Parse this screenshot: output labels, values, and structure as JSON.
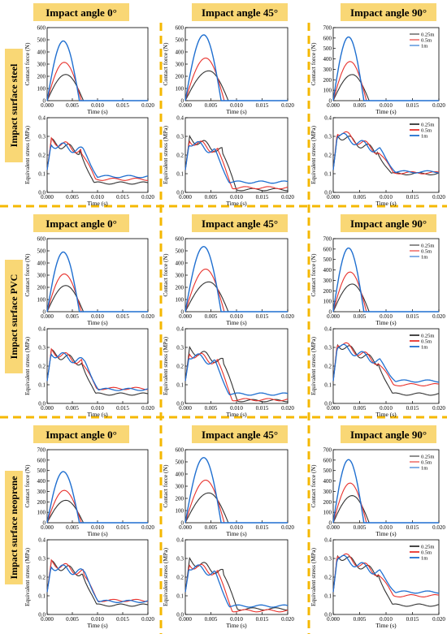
{
  "colors": {
    "dashed": "#F5B800",
    "label_bg": "#F9D775",
    "series": [
      "#333333",
      "#E8312C",
      "#1F6FD0"
    ]
  },
  "x_axis": {
    "label": "Time (s)",
    "ticks": [
      "0.000",
      "0.005",
      "0.010",
      "0.015",
      "0.020"
    ],
    "range": [
      0,
      0.02
    ]
  },
  "legend": [
    "0.25m",
    "0.5m",
    "1m"
  ],
  "rows": [
    {
      "surface": "Impact surface steel",
      "columns": [
        {
          "header": "Impact angle 0°",
          "force": {
            "ylabel": "Contact force (N)",
            "ticks": [
              "0",
              "100",
              "200",
              "300",
              "400",
              "500",
              "600"
            ],
            "range": [
              0,
              600
            ],
            "peaks": [
              215,
              315,
              490
            ],
            "peak_time": [
              0.0037,
              0.0034,
              0.0032
            ],
            "end_time": [
              0.0072,
              0.0068,
              0.0064
            ]
          },
          "stress": {
            "ylabel": "Equivalent stress (MPa)",
            "ticks": [
              "0.0",
              "0.1",
              "0.2",
              "0.3",
              "0.4"
            ],
            "range": [
              0,
              0.4
            ],
            "peak": [
              0.27,
              0.28,
              0.26
            ],
            "drop": [
              0.0065,
              0.0068,
              0.0072
            ],
            "tail": [
              0.05,
              0.07,
              0.085
            ]
          }
        },
        {
          "header": "Impact angle 45°",
          "force": {
            "ylabel": "Contact force (N)",
            "ticks": [
              "0",
              "100",
              "200",
              "300",
              "400",
              "500",
              "600"
            ],
            "range": [
              0,
              600
            ],
            "peaks": [
              245,
              350,
              540
            ],
            "peak_time": [
              0.0046,
              0.004,
              0.0036
            ],
            "end_time": [
              0.0084,
              0.0076,
              0.007
            ]
          },
          "stress": {
            "ylabel": "Equivalent stress (MPa)",
            "ticks": [
              "0.0",
              "0.1",
              "0.2",
              "0.3",
              "0.4"
            ],
            "range": [
              0,
              0.4
            ],
            "peak": [
              0.29,
              0.28,
              0.27
            ],
            "drop": [
              0.0072,
              0.0064,
              0.0058
            ],
            "tail": [
              0.015,
              0.025,
              0.055
            ]
          }
        },
        {
          "header": "Impact angle 90°",
          "force": {
            "ylabel": "Contact force (N)",
            "ticks": [
              "0",
              "100",
              "200",
              "300",
              "400",
              "500",
              "600",
              "700"
            ],
            "range": [
              0,
              700
            ],
            "peaks": [
              250,
              375,
              610
            ],
            "peak_time": [
              0.0036,
              0.0032,
              0.0029
            ],
            "end_time": [
              0.0068,
              0.0063,
              0.0058
            ]
          },
          "stress": {
            "ylabel": "Equivalent stress (MPa)",
            "ticks": [
              "0.0",
              "0.1",
              "0.2",
              "0.3",
              "0.4"
            ],
            "range": [
              0,
              0.4
            ],
            "peak": [
              0.31,
              0.33,
              0.31
            ],
            "drop": [
              0.0082,
              0.0086,
              0.009
            ],
            "tail": [
              0.1,
              0.105,
              0.11
            ]
          }
        }
      ]
    },
    {
      "surface": "Impact surface PVC",
      "columns": [
        {
          "header": "Impact angle 0°",
          "force": {
            "ylabel": "Contact force (N)",
            "ticks": [
              "0",
              "100",
              "200",
              "300",
              "400",
              "500",
              "600"
            ],
            "range": [
              0,
              600
            ],
            "peaks": [
              215,
              310,
              490
            ],
            "peak_time": [
              0.0037,
              0.0034,
              0.0032
            ],
            "end_time": [
              0.0072,
              0.0068,
              0.0064
            ]
          },
          "stress": {
            "ylabel": "Equivalent stress (MPa)",
            "ticks": [
              "0.0",
              "0.1",
              "0.2",
              "0.3",
              "0.4"
            ],
            "range": [
              0,
              0.4
            ],
            "peak": [
              0.27,
              0.28,
              0.27
            ],
            "drop": [
              0.0068,
              0.007,
              0.0074
            ],
            "tail": [
              0.05,
              0.08,
              0.075
            ]
          }
        },
        {
          "header": "Impact angle 45°",
          "force": {
            "ylabel": "Contact force (N)",
            "ticks": [
              "0",
              "100",
              "200",
              "300",
              "400",
              "500",
              "600"
            ],
            "range": [
              0,
              600
            ],
            "peaks": [
              245,
              350,
              535
            ],
            "peak_time": [
              0.0046,
              0.004,
              0.0036
            ],
            "end_time": [
              0.0084,
              0.0076,
              0.007
            ]
          },
          "stress": {
            "ylabel": "Equivalent stress (MPa)",
            "ticks": [
              "0.0",
              "0.1",
              "0.2",
              "0.3",
              "0.4"
            ],
            "range": [
              0,
              0.4
            ],
            "peak": [
              0.29,
              0.27,
              0.26
            ],
            "drop": [
              0.0074,
              0.0064,
              0.0058
            ],
            "tail": [
              0.015,
              0.02,
              0.05
            ]
          }
        },
        {
          "header": "Impact angle 90°",
          "force": {
            "ylabel": "Contact force (N)",
            "ticks": [
              "0",
              "100",
              "200",
              "300",
              "400",
              "500",
              "600",
              "700"
            ],
            "range": [
              0,
              700
            ],
            "peaks": [
              265,
              380,
              610
            ],
            "peak_time": [
              0.0036,
              0.0032,
              0.0029
            ],
            "end_time": [
              0.0068,
              0.0063,
              0.0058
            ]
          },
          "stress": {
            "ylabel": "Equivalent stress (MPa)",
            "ticks": [
              "0.0",
              "0.1",
              "0.2",
              "0.3",
              "0.4"
            ],
            "range": [
              0,
              0.4
            ],
            "peak": [
              0.32,
              0.33,
              0.31
            ],
            "drop": [
              0.0084,
              0.0086,
              0.009
            ],
            "tail": [
              0.05,
              0.1,
              0.12
            ]
          }
        }
      ]
    },
    {
      "surface": "Impact surface neoprene",
      "columns": [
        {
          "header": "Impact angle 0°",
          "force": {
            "ylabel": "Contact force (N)",
            "ticks": [
              "0",
              "100",
              "200",
              "300",
              "400",
              "500",
              "600",
              "700"
            ],
            "range": [
              0,
              700
            ],
            "peaks": [
              215,
              310,
              490
            ],
            "peak_time": [
              0.0037,
              0.0034,
              0.0032
            ],
            "end_time": [
              0.0072,
              0.0068,
              0.0064
            ]
          },
          "stress": {
            "ylabel": "Equivalent stress (MPa)",
            "ticks": [
              "0.0",
              "0.1",
              "0.2",
              "0.3",
              "0.4"
            ],
            "range": [
              0,
              0.4
            ],
            "peak": [
              0.27,
              0.28,
              0.26
            ],
            "drop": [
              0.007,
              0.0072,
              0.0074
            ],
            "tail": [
              0.05,
              0.075,
              0.07
            ]
          }
        },
        {
          "header": "Impact angle 45°",
          "force": {
            "ylabel": "Contact force (N)",
            "ticks": [
              "0",
              "100",
              "200",
              "300",
              "400",
              "500",
              "600"
            ],
            "range": [
              0,
              600
            ],
            "peaks": [
              245,
              350,
              535
            ],
            "peak_time": [
              0.0046,
              0.004,
              0.0036
            ],
            "end_time": [
              0.0084,
              0.0076,
              0.007
            ]
          },
          "stress": {
            "ylabel": "Equivalent stress (MPa)",
            "ticks": [
              "0.0",
              "0.1",
              "0.2",
              "0.3",
              "0.4"
            ],
            "range": [
              0,
              0.4
            ],
            "peak": [
              0.29,
              0.27,
              0.26
            ],
            "drop": [
              0.0074,
              0.0064,
              0.0058
            ],
            "tail": [
              0.03,
              0.02,
              0.045
            ]
          }
        },
        {
          "header": "Impact angle 90°",
          "force": {
            "ylabel": "Contact force (N)",
            "ticks": [
              "0",
              "100",
              "200",
              "300",
              "400",
              "500",
              "600",
              "700"
            ],
            "range": [
              0,
              700
            ],
            "peaks": [
              260,
              380,
              605
            ],
            "peak_time": [
              0.0036,
              0.0032,
              0.0029
            ],
            "end_time": [
              0.0068,
              0.0063,
              0.0058
            ]
          },
          "stress": {
            "ylabel": "Equivalent stress (MPa)",
            "ticks": [
              "0.0",
              "0.1",
              "0.2",
              "0.3",
              "0.4"
            ],
            "range": [
              0,
              0.4
            ],
            "peak": [
              0.32,
              0.33,
              0.31
            ],
            "drop": [
              0.0084,
              0.0086,
              0.009
            ],
            "tail": [
              0.05,
              0.1,
              0.12
            ]
          }
        }
      ]
    }
  ],
  "chart_data": [
    {
      "type": "line",
      "panel": "steel 0° contact force",
      "ylabel": "Contact force (N)",
      "xlabel": "Time (s)",
      "xlim": [
        0,
        0.02
      ],
      "ylim": [
        0,
        600
      ],
      "series": [
        {
          "name": "0.25m",
          "peak": 215
        },
        {
          "name": "0.5m",
          "peak": 315
        },
        {
          "name": "1m",
          "peak": 490
        }
      ]
    },
    {
      "type": "line",
      "panel": "steel 45° contact force",
      "ylabel": "Contact force (N)",
      "xlabel": "Time (s)",
      "xlim": [
        0,
        0.02
      ],
      "ylim": [
        0,
        600
      ],
      "series": [
        {
          "name": "0.25m",
          "peak": 245
        },
        {
          "name": "0.5m",
          "peak": 350
        },
        {
          "name": "1m",
          "peak": 540
        }
      ]
    },
    {
      "type": "line",
      "panel": "steel 90° contact force",
      "ylabel": "Contact force (N)",
      "xlabel": "Time (s)",
      "xlim": [
        0,
        0.02
      ],
      "ylim": [
        0,
        700
      ],
      "series": [
        {
          "name": "0.25m",
          "peak": 250
        },
        {
          "name": "0.5m",
          "peak": 375
        },
        {
          "name": "1m",
          "peak": 610
        }
      ]
    },
    {
      "type": "line",
      "panel": "PVC 0° contact force",
      "ylabel": "Contact force (N)",
      "xlabel": "Time (s)",
      "xlim": [
        0,
        0.02
      ],
      "ylim": [
        0,
        600
      ],
      "series": [
        {
          "name": "0.25m",
          "peak": 215
        },
        {
          "name": "0.5m",
          "peak": 310
        },
        {
          "name": "1m",
          "peak": 490
        }
      ]
    },
    {
      "type": "line",
      "panel": "PVC 45° contact force",
      "ylabel": "Contact force (N)",
      "xlabel": "Time (s)",
      "xlim": [
        0,
        0.02
      ],
      "ylim": [
        0,
        600
      ],
      "series": [
        {
          "name": "0.25m",
          "peak": 245
        },
        {
          "name": "0.5m",
          "peak": 350
        },
        {
          "name": "1m",
          "peak": 535
        }
      ]
    },
    {
      "type": "line",
      "panel": "PVC 90° contact force",
      "ylabel": "Contact force (N)",
      "xlabel": "Time (s)",
      "xlim": [
        0,
        0.02
      ],
      "ylim": [
        0,
        700
      ],
      "series": [
        {
          "name": "0.25m",
          "peak": 265
        },
        {
          "name": "0.5m",
          "peak": 380
        },
        {
          "name": "1m",
          "peak": 610
        }
      ]
    },
    {
      "type": "line",
      "panel": "neoprene 0° contact force",
      "ylabel": "Contact force (N)",
      "xlabel": "Time (s)",
      "xlim": [
        0,
        0.02
      ],
      "ylim": [
        0,
        700
      ],
      "series": [
        {
          "name": "0.25m",
          "peak": 215
        },
        {
          "name": "0.5m",
          "peak": 310
        },
        {
          "name": "1m",
          "peak": 490
        }
      ]
    },
    {
      "type": "line",
      "panel": "neoprene 45° contact force",
      "ylabel": "Contact force (N)",
      "xlabel": "Time (s)",
      "xlim": [
        0,
        0.02
      ],
      "ylim": [
        0,
        600
      ],
      "series": [
        {
          "name": "0.25m",
          "peak": 245
        },
        {
          "name": "0.5m",
          "peak": 350
        },
        {
          "name": "1m",
          "peak": 535
        }
      ]
    },
    {
      "type": "line",
      "panel": "neoprene 90° contact force",
      "ylabel": "Contact force (N)",
      "xlabel": "Time (s)",
      "xlim": [
        0,
        0.02
      ],
      "ylim": [
        0,
        700
      ],
      "series": [
        {
          "name": "0.25m",
          "peak": 260
        },
        {
          "name": "0.5m",
          "peak": 380
        },
        {
          "name": "1m",
          "peak": 605
        }
      ]
    }
  ]
}
